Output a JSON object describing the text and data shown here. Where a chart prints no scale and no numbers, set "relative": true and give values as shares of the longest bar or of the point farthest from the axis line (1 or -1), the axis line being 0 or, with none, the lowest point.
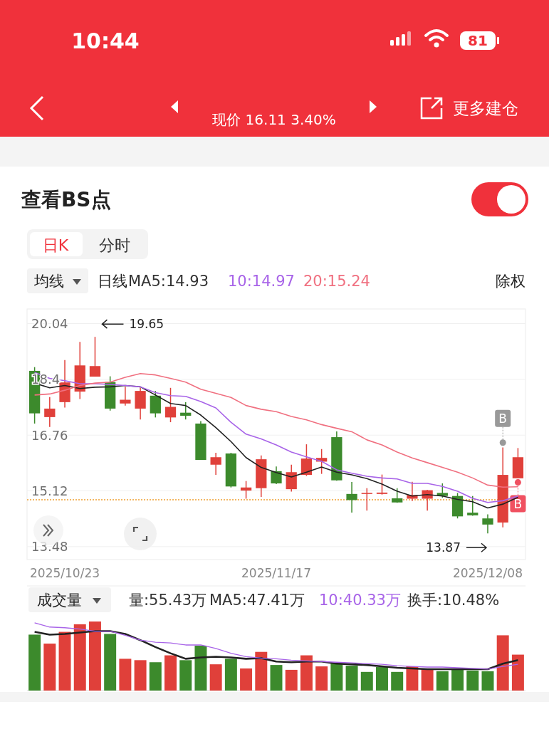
{
  "chart_data": [
    {
      "type": "candlestick",
      "title": "现价 16.11 3.40%",
      "annotations": [
        "10:44",
        "81",
        "更多建仓",
        "查看BS点",
        "日K",
        "分时",
        "均线",
        "日线",
        "除权",
        "19.65",
        "13.87",
        "B",
        "B"
      ],
      "categories": [
        null,
        null,
        "2025/10/23",
        null,
        null,
        null,
        null,
        null,
        null,
        null,
        null,
        null,
        null,
        null,
        null,
        null,
        "2025/11/17",
        null,
        null,
        null,
        null,
        null,
        null,
        null,
        null,
        null,
        null,
        null,
        null,
        null,
        "2025/12/08",
        null,
        null
      ],
      "ohlc": [
        [
          18.65,
          18.76,
          17.1,
          17.4
        ],
        [
          17.29,
          17.88,
          17.0,
          17.54
        ],
        [
          17.73,
          18.97,
          17.57,
          18.31
        ],
        [
          18.04,
          19.5,
          17.82,
          18.81
        ],
        [
          18.48,
          19.65,
          18.48,
          18.79
        ],
        [
          18.32,
          18.49,
          17.48,
          17.54
        ],
        [
          17.69,
          18.18,
          17.63,
          17.8
        ],
        [
          17.54,
          18.15,
          17.22,
          18.06
        ],
        [
          17.92,
          18.06,
          17.28,
          17.4
        ],
        [
          17.28,
          18.15,
          17.14,
          17.59
        ],
        [
          17.42,
          17.73,
          17.22,
          17.33
        ],
        [
          17.1,
          17.17,
          16.03,
          16.03
        ],
        [
          15.89,
          16.24,
          15.59,
          16.11
        ],
        [
          16.22,
          16.24,
          15.22,
          15.25
        ],
        [
          15.13,
          15.41,
          14.89,
          15.22
        ],
        [
          15.2,
          16.16,
          14.94,
          16.05
        ],
        [
          15.7,
          15.84,
          15.32,
          15.34
        ],
        [
          15.17,
          15.89,
          15.1,
          15.67
        ],
        [
          15.59,
          16.49,
          15.56,
          16.07
        ],
        [
          15.98,
          16.35,
          15.62,
          16.09
        ],
        [
          16.7,
          16.87,
          15.42,
          15.43
        ],
        [
          15.03,
          15.38,
          14.48,
          14.85
        ],
        [
          15.03,
          15.2,
          14.54,
          15.06
        ],
        [
          15.03,
          15.6,
          15.01,
          15.07
        ],
        [
          14.9,
          15.2,
          14.77,
          14.78
        ],
        [
          14.89,
          15.39,
          14.82,
          15.0
        ],
        [
          14.89,
          15.15,
          14.54,
          15.14
        ],
        [
          15.06,
          15.34,
          14.92,
          14.97
        ],
        [
          14.97,
          15.06,
          14.31,
          14.37
        ],
        [
          14.48,
          14.97,
          14.39,
          14.4
        ],
        [
          14.31,
          14.43,
          13.87,
          14.13
        ],
        [
          14.19,
          16.4,
          14.05,
          15.59
        ],
        [
          15.49,
          16.38,
          15.49,
          16.11
        ]
      ],
      "colors": [
        "#3c8a2c",
        "#e0403a",
        "#e0403a",
        "#e0403a",
        "#e0403a",
        "#3c8a2c",
        "#e0403a",
        "#e0403a",
        "#3c8a2c",
        "#e0403a",
        "#3c8a2c",
        "#3c8a2c",
        "#e0403a",
        "#3c8a2c",
        "#e0403a",
        "#e0403a",
        "#3c8a2c",
        "#e0403a",
        "#e0403a",
        "#e0403a",
        "#3c8a2c",
        "#3c8a2c",
        "#e0403a",
        "#e0403a",
        "#3c8a2c",
        "#e0403a",
        "#e0403a",
        "#3c8a2c",
        "#3c8a2c",
        "#3c8a2c",
        "#3c8a2c",
        "#e0403a",
        "#e0403a"
      ],
      "series": [
        {
          "type": "line",
          "name": "MA5:14.93",
          "color": "#222222",
          "values": [
            18.29,
            18.15,
            18.22,
            18.13,
            18.17,
            18.18,
            18.22,
            18.18,
            17.94,
            17.69,
            17.63,
            17.35,
            16.98,
            16.57,
            16.1,
            15.81,
            15.66,
            15.53,
            15.67,
            15.82,
            15.67,
            15.59,
            15.48,
            15.32,
            15.11,
            14.97,
            15.01,
            14.97,
            14.87,
            14.8,
            14.62,
            14.73,
            14.93
          ]
        },
        {
          "type": "line",
          "name": "10:14.97",
          "color": "#a864e8",
          "values": [
            18.6,
            18.43,
            18.36,
            18.27,
            18.27,
            18.25,
            18.22,
            18.18,
            18.01,
            17.92,
            17.9,
            17.75,
            17.56,
            17.14,
            16.79,
            16.65,
            16.47,
            16.26,
            16.12,
            15.99,
            15.74,
            15.64,
            15.55,
            15.5,
            15.47,
            15.34,
            15.34,
            15.25,
            15.11,
            14.9,
            14.78,
            14.83,
            14.97
          ]
        },
        {
          "type": "line",
          "name": "20:15.24",
          "color": "#f07080",
          "values": [
            17.94,
            17.97,
            18.08,
            18.22,
            18.29,
            18.32,
            18.46,
            18.57,
            18.53,
            18.43,
            18.32,
            18.11,
            17.99,
            17.87,
            17.63,
            17.52,
            17.45,
            17.31,
            17.21,
            17.07,
            16.96,
            16.86,
            16.62,
            16.47,
            16.26,
            16.09,
            15.95,
            15.81,
            15.67,
            15.5,
            15.29,
            15.23,
            15.24
          ]
        },
        {
          "type": "scatter",
          "color": "#999999",
          "values": [
            null,
            null,
            null,
            null,
            null,
            null,
            null,
            null,
            null,
            null,
            null,
            null,
            null,
            null,
            null,
            null,
            null,
            null,
            null,
            null,
            null,
            null,
            null,
            null,
            null,
            null,
            null,
            null,
            null,
            null,
            null,
            16.54,
            null
          ]
        },
        {
          "type": "scatter",
          "color": "#f05060",
          "values": [
            null,
            null,
            null,
            null,
            null,
            null,
            null,
            null,
            null,
            null,
            null,
            null,
            null,
            null,
            null,
            null,
            null,
            null,
            null,
            null,
            null,
            null,
            null,
            null,
            null,
            null,
            null,
            null,
            null,
            null,
            null,
            null,
            15.37
          ]
        }
      ],
      "ref_lines": [
        {
          "axis": "y",
          "value": 14.86,
          "color": "#f0a030",
          "line_style": "dotted"
        }
      ],
      "ylim": [
        13.1,
        20.47
      ],
      "yticks": [
        20.04,
        18.4,
        16.76,
        15.12,
        13.48
      ],
      "grid": "y",
      "legend": "top left"
    },
    {
      "type": "bar",
      "title": "成交量",
      "relative": true,
      "annotations": [
        "量:55.43万",
        "换手:10.48%"
      ],
      "categories": [
        null,
        null,
        null,
        null,
        null,
        null,
        null,
        null,
        null,
        null,
        null,
        null,
        null,
        null,
        null,
        null,
        null,
        null,
        null,
        null,
        null,
        null,
        null,
        null,
        null,
        null,
        null,
        null,
        null,
        null,
        null,
        null,
        null
      ],
      "values": [
        0.81,
        0.68,
        0.85,
        0.96,
        1,
        0.82,
        0.46,
        0.44,
        0.41,
        0.51,
        0.44,
        0.65,
        0.38,
        0.46,
        0.32,
        0.56,
        0.37,
        0.3,
        0.51,
        0.35,
        0.39,
        0.36,
        0.27,
        0.34,
        0.27,
        0.35,
        0.32,
        0.28,
        0.31,
        0.29,
        0.28,
        0.8,
        0.52
      ],
      "colors": [
        "#3c8a2c",
        "#e0403a",
        "#e0403a",
        "#e0403a",
        "#e0403a",
        "#3c8a2c",
        "#e0403a",
        "#e0403a",
        "#3c8a2c",
        "#e0403a",
        "#3c8a2c",
        "#3c8a2c",
        "#e0403a",
        "#3c8a2c",
        "#e0403a",
        "#e0403a",
        "#3c8a2c",
        "#e0403a",
        "#e0403a",
        "#e0403a",
        "#3c8a2c",
        "#3c8a2c",
        "#3c8a2c",
        "#3c8a2c",
        "#3c8a2c",
        "#e0403a",
        "#e0403a",
        "#3c8a2c",
        "#3c8a2c",
        "#3c8a2c",
        "#3c8a2c",
        "#e0403a",
        "#e0403a"
      ],
      "series": [
        {
          "type": "line",
          "name": "MA5:47.41万",
          "color": "#222222",
          "values": [
            0.85,
            0.81,
            0.82,
            0.84,
            0.86,
            0.86,
            0.82,
            0.73,
            0.63,
            0.54,
            0.46,
            0.48,
            0.49,
            0.48,
            0.46,
            0.47,
            0.42,
            0.41,
            0.42,
            0.42,
            0.39,
            0.38,
            0.37,
            0.35,
            0.33,
            0.32,
            0.31,
            0.31,
            0.31,
            0.31,
            0.31,
            0.39,
            0.44
          ]
        },
        {
          "type": "line",
          "name": "10:40.33万",
          "color": "#a864e8",
          "values": [
            0.98,
            0.92,
            0.91,
            0.89,
            0.86,
            0.86,
            0.8,
            0.73,
            0.7,
            0.69,
            0.66,
            0.66,
            0.61,
            0.54,
            0.49,
            0.47,
            0.46,
            0.44,
            0.43,
            0.42,
            0.41,
            0.4,
            0.39,
            0.38,
            0.36,
            0.35,
            0.34,
            0.34,
            0.33,
            0.32,
            0.31,
            0.35,
            0.38
          ]
        }
      ],
      "legend": "top"
    }
  ]
}
